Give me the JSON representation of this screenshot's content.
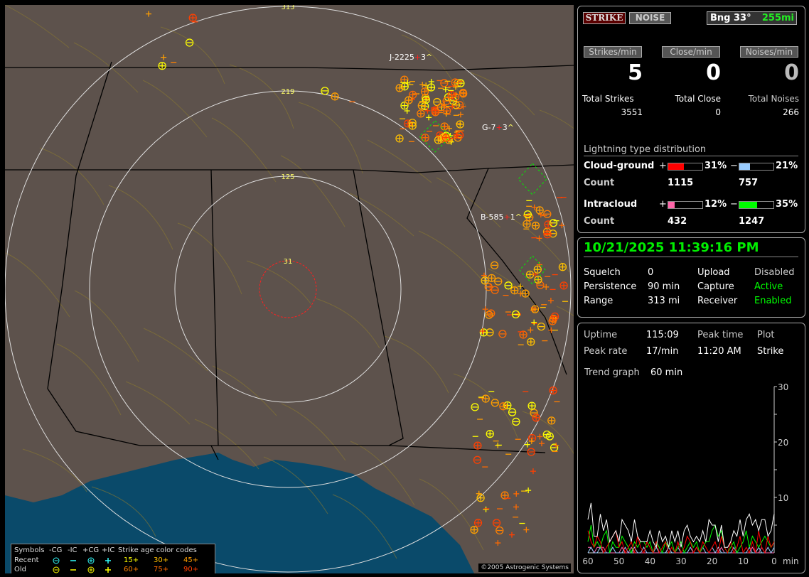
{
  "map": {
    "range_rings": [
      "31",
      "125",
      "219",
      "313"
    ],
    "storm_labels": [
      {
        "id": "J-2225",
        "dir": "3^"
      },
      {
        "id": "G-7",
        "dir": "3^"
      },
      {
        "id": "B-585",
        "dir": "1^"
      }
    ],
    "copyright": "©2005 Astrogenic Systems",
    "colors": {
      "land": "#5d524c",
      "water": "#0a4a6a",
      "rings": "#e0e0e0",
      "close_ring": "#ff2020"
    }
  },
  "legend": {
    "headers": [
      "Symbols",
      "-CG",
      "-IC",
      "+CG",
      "+IC",
      "Strike age color codes"
    ],
    "rows": [
      {
        "label": "Recent",
        "ages": [
          "15+",
          "30+",
          "45+"
        ]
      },
      {
        "label": "Old",
        "ages": [
          "60+",
          "75+",
          "90+"
        ]
      }
    ],
    "age_colors": [
      "#ffff00",
      "#ffc000",
      "#ff9f00",
      "#ff8000",
      "#ff6a00",
      "#ff4000"
    ]
  },
  "status": {
    "strike_button": "STRIKE",
    "noise_button": "NOISE",
    "bearing": "Bng 33°",
    "distance": "255mi",
    "rates": [
      {
        "label": "Strikes/min",
        "value": "5"
      },
      {
        "label": "Close/min",
        "value": "0"
      },
      {
        "label": "Noises/min",
        "value": "0"
      }
    ],
    "totals": [
      {
        "label": "Total Strikes",
        "value": "3551"
      },
      {
        "label": "Total Close",
        "value": "0"
      },
      {
        "label": "Total Noises",
        "value": "266"
      }
    ],
    "distribution_title": "Lightning type distribution",
    "types": [
      {
        "name": "Cloud-ground",
        "count_label": "Count",
        "pos_sign": "+",
        "pos_pct": "31%",
        "pos_value": 31,
        "pos_count": "1115",
        "pos_color": "#ff0000",
        "neg_sign": "−",
        "neg_pct": "21%",
        "neg_value": 21,
        "neg_count": "757",
        "neg_color": "#99ccff"
      },
      {
        "name": "Intracloud",
        "count_label": "Count",
        "pos_sign": "+",
        "pos_pct": "12%",
        "pos_value": 12,
        "pos_count": "432",
        "pos_color": "#ff66aa",
        "neg_sign": "−",
        "neg_pct": "35%",
        "neg_value": 35,
        "neg_count": "1247",
        "neg_color": "#00ff00"
      }
    ]
  },
  "info": {
    "datetime": "10/21/2025 11:39:16 PM",
    "rows": [
      {
        "label": "Squelch",
        "value": "0",
        "label2": "Upload",
        "value2": "Disabled",
        "color2": "#cccccc"
      },
      {
        "label": "Persistence",
        "value": "90 min",
        "label2": "Capture",
        "value2": "Active",
        "color2": "#00ff00"
      },
      {
        "label": "Range",
        "value": "313 mi",
        "label2": "Receiver",
        "value2": "Enabled",
        "color2": "#00ff00"
      }
    ]
  },
  "stats": {
    "uptime_label": "Uptime",
    "uptime": "115:09",
    "peak_time_label": "Peak time",
    "peak_time": "11:20 AM",
    "plot_label": "Plot",
    "plot": "Strike",
    "peak_rate_label": "Peak rate",
    "peak_rate": "17/min",
    "trend_label": "Trend graph",
    "trend": "60 min"
  },
  "chart_data": {
    "type": "line",
    "xlabel": "min",
    "x_ticks": [
      "60",
      "50",
      "40",
      "30",
      "20",
      "10",
      "0"
    ],
    "y_ticks": [
      "10",
      "20",
      "30"
    ],
    "xlim": [
      60,
      0
    ],
    "ylim": [
      0,
      30
    ],
    "x": [
      60,
      59,
      58,
      57,
      56,
      55,
      54,
      53,
      52,
      51,
      50,
      49,
      48,
      47,
      46,
      45,
      44,
      43,
      42,
      41,
      40,
      39,
      38,
      37,
      36,
      35,
      34,
      33,
      32,
      31,
      30,
      29,
      28,
      27,
      26,
      25,
      24,
      23,
      22,
      21,
      20,
      19,
      18,
      17,
      16,
      15,
      14,
      13,
      12,
      11,
      10,
      9,
      8,
      7,
      6,
      5,
      4,
      3,
      2,
      1,
      0
    ],
    "series": [
      {
        "color": "#ffffff",
        "values": [
          6,
          9,
          3,
          3,
          7,
          4,
          6,
          2,
          3,
          4,
          2,
          6,
          5,
          4,
          2,
          6,
          3,
          2,
          2,
          2,
          4,
          2,
          1,
          4,
          2,
          3,
          1,
          4,
          2,
          4,
          1,
          4,
          5,
          3,
          2,
          3,
          2,
          4,
          2,
          6,
          5,
          5,
          2,
          5,
          1,
          1,
          2,
          4,
          3,
          6,
          3,
          6,
          7,
          5,
          6,
          4,
          6,
          6,
          3,
          4,
          7
        ]
      },
      {
        "color": "#ff0000",
        "values": [
          4,
          2,
          1,
          3,
          2,
          0,
          1,
          2,
          3,
          4,
          1,
          2,
          0,
          1,
          2,
          0,
          3,
          1,
          0,
          2,
          1,
          0,
          2,
          0,
          1,
          2,
          0,
          1,
          0,
          2,
          0,
          1,
          3,
          2,
          0,
          1,
          0,
          2,
          1,
          0,
          1,
          2,
          0,
          3,
          1,
          0,
          2,
          0,
          1,
          3,
          0,
          1,
          0,
          2,
          0,
          4,
          1,
          0,
          3,
          1,
          2
        ]
      },
      {
        "color": "#00ff00",
        "values": [
          2,
          5,
          1,
          2,
          1,
          3,
          4,
          0,
          2,
          1,
          1,
          3,
          2,
          1,
          0,
          2,
          1,
          2,
          2,
          1,
          2,
          0,
          2,
          1,
          0,
          2,
          1,
          2,
          0,
          1,
          2,
          0,
          1,
          2,
          1,
          2,
          0,
          1,
          2,
          2,
          4,
          5,
          3,
          4,
          1,
          0,
          1,
          2,
          0,
          1,
          2,
          4,
          1,
          3,
          2,
          1,
          2,
          3,
          2,
          1,
          2
        ]
      },
      {
        "color": "#99ccff",
        "values": [
          0,
          1,
          0,
          0,
          1,
          0,
          0,
          0,
          1,
          0,
          0,
          0,
          1,
          0,
          0,
          1,
          0,
          0,
          1,
          0,
          0,
          0,
          1,
          0,
          0,
          0,
          1,
          0,
          0,
          1,
          0,
          0,
          0,
          1,
          0,
          0,
          0,
          1,
          0,
          0,
          1,
          0,
          1,
          0,
          0,
          0,
          0,
          1,
          0,
          0,
          0,
          0,
          1,
          0,
          0,
          1,
          0,
          0,
          1,
          0,
          1
        ]
      },
      {
        "color": "#ff66aa",
        "values": [
          1,
          1,
          0,
          1,
          1,
          1,
          0,
          0,
          0,
          0,
          0,
          1,
          0,
          0,
          1,
          0,
          0,
          0,
          0,
          0,
          0,
          0,
          0,
          0,
          0,
          0,
          1,
          0,
          0,
          0,
          0,
          0,
          0,
          0,
          0,
          1,
          0,
          0,
          0,
          0,
          0,
          0,
          0,
          1,
          0,
          0,
          0,
          0,
          0,
          0,
          0,
          0,
          0,
          1,
          0,
          0,
          1,
          0,
          0,
          0,
          0
        ]
      }
    ]
  }
}
